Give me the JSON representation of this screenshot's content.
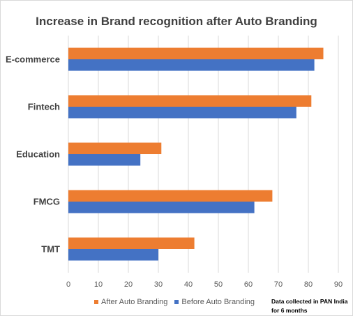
{
  "chart_data": {
    "type": "bar",
    "orientation": "horizontal",
    "title": "Increase in Brand recognition after Auto Branding",
    "categories": [
      "E-commerce",
      "Fintech",
      "Education",
      "FMCG",
      "TMT"
    ],
    "series": [
      {
        "name": "After Auto Branding",
        "color": "#ED7D31",
        "values": [
          85,
          81,
          31,
          68,
          42
        ]
      },
      {
        "name": "Before Auto Branding",
        "color": "#4472C4",
        "values": [
          82,
          76,
          24,
          62,
          30
        ]
      }
    ],
    "xlim": [
      0,
      90
    ],
    "xticks": [
      "0",
      "10",
      "20",
      "30",
      "40",
      "50",
      "60",
      "70",
      "80",
      "90"
    ],
    "grid": true,
    "legend_position": "bottom",
    "note": "Data collected in PAN India for 6 months"
  }
}
